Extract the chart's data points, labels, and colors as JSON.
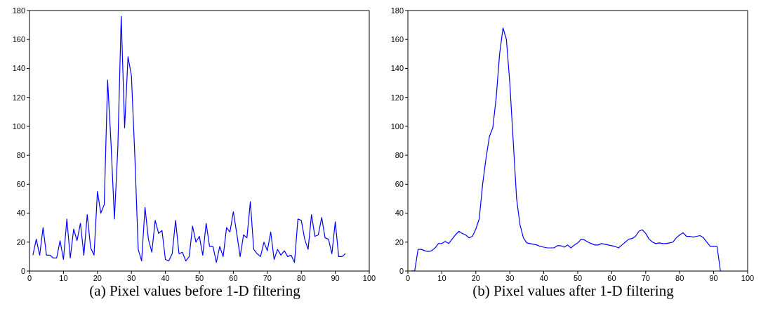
{
  "chart_data": [
    {
      "type": "line",
      "title": "(a) Pixel values before 1-D filtering",
      "x": [
        1,
        2,
        3,
        4,
        5,
        6,
        7,
        8,
        9,
        10,
        11,
        12,
        13,
        14,
        15,
        16,
        17,
        18,
        19,
        20,
        21,
        22,
        23,
        24,
        25,
        26,
        27,
        28,
        29,
        30,
        31,
        32,
        33,
        34,
        35,
        36,
        37,
        38,
        39,
        40,
        41,
        42,
        43,
        44,
        45,
        46,
        47,
        48,
        49,
        50,
        51,
        52,
        53,
        54,
        55,
        56,
        57,
        58,
        59,
        60,
        61,
        62,
        63,
        64,
        65,
        66,
        67,
        68,
        69,
        70,
        71,
        72,
        73,
        74,
        75,
        76,
        77,
        78,
        79,
        80,
        81,
        82,
        83,
        84,
        85,
        86,
        87,
        88,
        89,
        90,
        91,
        92,
        93
      ],
      "series": [
        {
          "color": "#0000ff",
          "values": [
            11,
            22,
            11,
            30,
            11,
            11,
            9,
            9,
            21,
            8,
            36,
            9,
            29,
            21,
            33,
            11,
            39,
            16,
            11,
            55,
            40,
            46,
            132,
            88,
            36,
            85,
            176,
            99,
            148,
            135,
            80,
            15,
            7,
            44,
            22,
            13,
            35,
            26,
            28,
            8,
            7,
            12,
            35,
            12,
            13,
            7,
            10,
            31,
            20,
            24,
            11,
            33,
            17,
            17,
            6,
            17,
            10,
            30,
            27,
            41,
            26,
            10,
            25,
            23,
            48,
            15,
            12,
            10,
            20,
            14,
            27,
            8,
            15,
            11,
            14,
            10,
            11,
            6,
            36,
            35,
            22,
            15,
            39,
            24,
            25,
            37,
            23,
            22,
            12,
            34,
            10,
            10,
            12
          ]
        }
      ],
      "xlim": [
        0,
        100
      ],
      "xticks": [
        0,
        10,
        20,
        30,
        40,
        50,
        60,
        70,
        80,
        90,
        100
      ],
      "ylim": [
        0,
        180
      ],
      "yticks": [
        0,
        20,
        40,
        60,
        80,
        100,
        120,
        140,
        160,
        180
      ],
      "grid": false,
      "legend": false,
      "marker": "none",
      "line_style": "solid"
    },
    {
      "type": "line",
      "title": "(b) Pixel values after 1-D filtering",
      "x": [
        1,
        2,
        3,
        4,
        5,
        6,
        7,
        8,
        9,
        10,
        11,
        12,
        13,
        14,
        15,
        16,
        17,
        18,
        19,
        20,
        21,
        22,
        23,
        24,
        25,
        26,
        27,
        28,
        29,
        30,
        31,
        32,
        33,
        34,
        35,
        36,
        37,
        38,
        39,
        40,
        41,
        42,
        43,
        44,
        45,
        46,
        47,
        48,
        49,
        50,
        51,
        52,
        53,
        54,
        55,
        56,
        57,
        58,
        59,
        60,
        61,
        62,
        63,
        64,
        65,
        66,
        67,
        68,
        69,
        70,
        71,
        72,
        73,
        74,
        75,
        76,
        77,
        78,
        79,
        80,
        81,
        82,
        83,
        84,
        85,
        86,
        87,
        88,
        89,
        90,
        91,
        92
      ],
      "series": [
        {
          "color": "#0000ff",
          "values": [
            0,
            0,
            15,
            15,
            14,
            13.5,
            14,
            16,
            19,
            19,
            20.5,
            19,
            22,
            25,
            27.5,
            26,
            25,
            23,
            24,
            29,
            36,
            60,
            78,
            93,
            99,
            120,
            150,
            168,
            160,
            130,
            90,
            50,
            32,
            23,
            19.5,
            19,
            18.5,
            18,
            17,
            16.5,
            16,
            16,
            16,
            17.5,
            17.5,
            16.5,
            18,
            16,
            18,
            19.5,
            22,
            21.5,
            20,
            19,
            18,
            18,
            19,
            18.5,
            18,
            17.5,
            17,
            16,
            18,
            20,
            22,
            22.5,
            24,
            27.5,
            28.5,
            26,
            22,
            20,
            19,
            19.5,
            19,
            19,
            19.5,
            20,
            23,
            25,
            26.5,
            24,
            24,
            23.5,
            24,
            24.5,
            23,
            20,
            17,
            17,
            17,
            0
          ]
        }
      ],
      "xlim": [
        0,
        100
      ],
      "xticks": [
        0,
        10,
        20,
        30,
        40,
        50,
        60,
        70,
        80,
        90,
        100
      ],
      "ylim": [
        0,
        180
      ],
      "yticks": [
        0,
        20,
        40,
        60,
        80,
        100,
        120,
        140,
        160,
        180
      ],
      "grid": false,
      "legend": false,
      "marker": "none",
      "line_style": "solid"
    }
  ]
}
